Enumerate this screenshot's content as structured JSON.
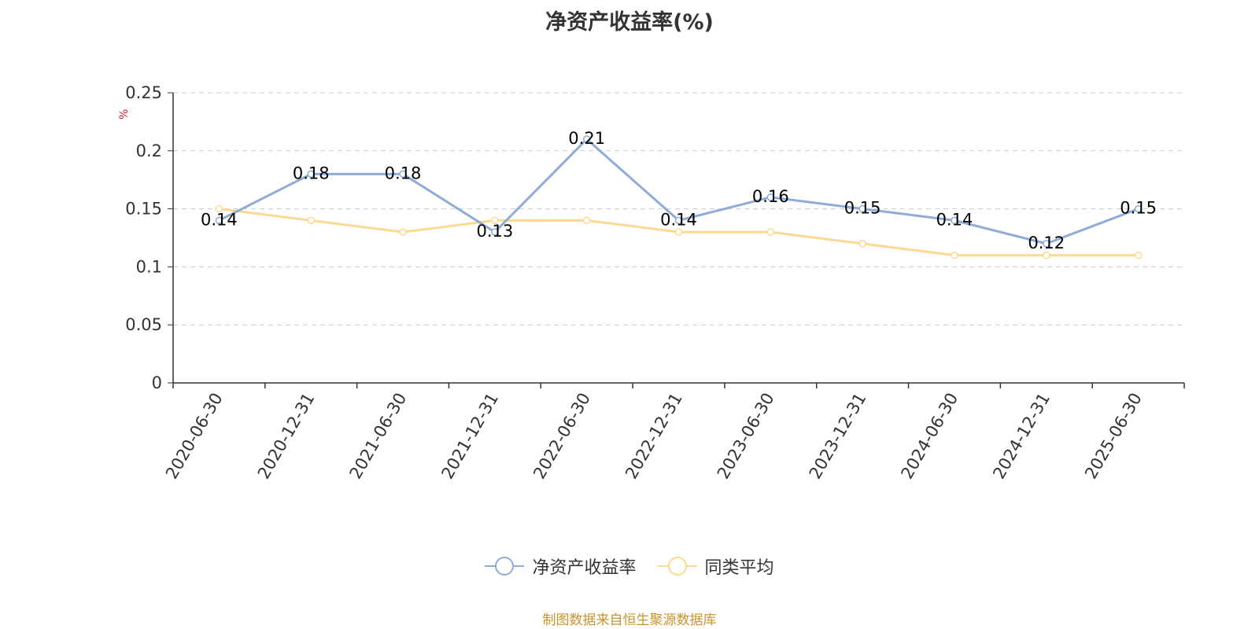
{
  "colors": {
    "series_main": "#8eacd8",
    "series_avg": "#fcd992",
    "axis": "#333333",
    "grid": "#cccccc",
    "unit_label": "#e02020",
    "source_note": "#c8942e"
  },
  "chart_data": {
    "type": "line",
    "title": "净资产收益率(%)",
    "ylabel": "%",
    "xlabel": "",
    "ylim": [
      0,
      0.25
    ],
    "yticks": [
      "0",
      "0.05",
      "0.1",
      "0.15",
      "0.2",
      "0.25"
    ],
    "ytick_values": [
      0,
      0.05,
      0.1,
      0.15,
      0.2,
      0.25
    ],
    "grid": true,
    "legend_position": "bottom-center",
    "categories": [
      "2020-06-30",
      "2020-12-31",
      "2021-06-30",
      "2021-12-31",
      "2022-06-30",
      "2022-12-31",
      "2023-06-30",
      "2023-12-31",
      "2024-06-30",
      "2024-12-31",
      "2025-06-30"
    ],
    "series": [
      {
        "name": "净资产收益率",
        "values": [
          0.14,
          0.18,
          0.18,
          0.13,
          0.21,
          0.14,
          0.16,
          0.15,
          0.14,
          0.12,
          0.15
        ],
        "labels": [
          "0.14",
          "0.18",
          "0.18",
          "0.13",
          "0.21",
          "0.14",
          "0.16",
          "0.15",
          "0.14",
          "0.12",
          "0.15"
        ],
        "show_labels": true
      },
      {
        "name": "同类平均",
        "values": [
          0.15,
          0.14,
          0.13,
          0.14,
          0.14,
          0.13,
          0.13,
          0.12,
          0.11,
          0.11,
          0.11
        ],
        "show_labels": false
      }
    ]
  },
  "source_note": "制图数据来自恒生聚源数据库"
}
